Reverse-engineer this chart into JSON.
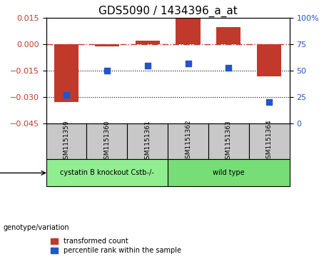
{
  "title": "GDS5090 / 1434396_a_at",
  "samples": [
    "GSM1151359",
    "GSM1151360",
    "GSM1151361",
    "GSM1151362",
    "GSM1151363",
    "GSM1151364"
  ],
  "bar_values": [
    -0.033,
    -0.001,
    0.002,
    0.015,
    0.01,
    -0.018
  ],
  "percentile_values": [
    27,
    50,
    55,
    57,
    53,
    20
  ],
  "ylim_left": [
    -0.045,
    0.015
  ],
  "ylim_right": [
    0,
    100
  ],
  "yticks_left": [
    -0.045,
    -0.03,
    -0.015,
    0,
    0.015
  ],
  "yticks_right": [
    0,
    25,
    50,
    75,
    100
  ],
  "bar_color": "#c0392b",
  "dot_color": "#2255cc",
  "dash_line_color": "#c0392b",
  "dot_line_color": "black",
  "groups": [
    {
      "label": "cystatin B knockout Cstb-/-",
      "samples": [
        0,
        1,
        2
      ],
      "color": "#90EE90"
    },
    {
      "label": "wild type",
      "samples": [
        3,
        4,
        5
      ],
      "color": "#77DD77"
    }
  ],
  "genotype_label": "genotype/variation",
  "legend_bar_label": "transformed count",
  "legend_dot_label": "percentile rank within the sample",
  "bar_width": 0.6,
  "title_fontsize": 11,
  "axis_fontsize": 8,
  "tick_fontsize": 8,
  "label_box_color": "#c8c8c8",
  "left_tick_color": "#c0392b",
  "right_tick_color": "#2255cc"
}
